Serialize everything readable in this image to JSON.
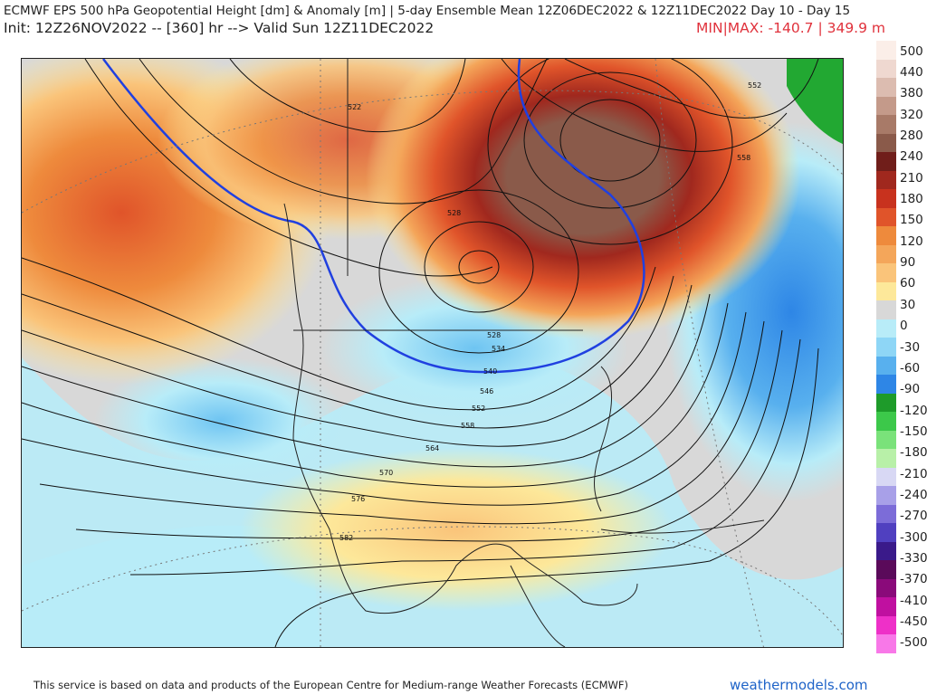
{
  "header": {
    "title": "ECMWF EPS 500 hPa Geopotential Height [dm] & Anomaly [m] | 5-day Ensemble Mean 12Z06DEC2022 & 12Z11DEC2022  Day 10 - Day 15",
    "init": "Init: 12Z26NOV2022 -- [360] hr --> Valid Sun 12Z11DEC2022",
    "minmax": "MIN|MAX: -140.7 | 349.9 m"
  },
  "map": {
    "contour_labels": [
      "522",
      "528",
      "528",
      "534",
      "540",
      "546",
      "552",
      "558",
      "564",
      "570",
      "576",
      "582",
      "552",
      "558"
    ],
    "anomaly_colors": {
      "strong_positive": "#8a5a4a",
      "positive_high": "#c8321e",
      "positive_mid": "#ee8a3c",
      "positive_low": "#fac47a",
      "positive_faint": "#fdf0a0",
      "neutral": "#d8d8d8",
      "negative_low": "#b8ecf8",
      "negative_mid": "#6ec4f2",
      "negative_high": "#2e86e6",
      "green": "#22a832",
      "trough_line": "#2040e0"
    }
  },
  "colorbar": {
    "labels": [
      "500",
      "440",
      "380",
      "320",
      "280",
      "240",
      "210",
      "180",
      "150",
      "120",
      "90",
      "60",
      "30",
      "0",
      "-30",
      "-60",
      "-90",
      "-120",
      "-150",
      "-180",
      "-210",
      "-240",
      "-270",
      "-300",
      "-330",
      "-370",
      "-410",
      "-450",
      "-500"
    ],
    "colors": [
      "#fbeee8",
      "#efd8d0",
      "#dcbcb0",
      "#c49a8a",
      "#a87a68",
      "#8a5a4a",
      "#701e1a",
      "#a0281e",
      "#c8321e",
      "#e0542a",
      "#ee8a3c",
      "#f4a65a",
      "#fac47a",
      "#fde89a",
      "#d8d8d8",
      "#b8ecf8",
      "#8ed6f6",
      "#58b0ee",
      "#2e86e6",
      "#1e9b2a",
      "#3cc84a",
      "#7ae27a",
      "#b8f0a8",
      "#d8d8f4",
      "#a8a0e8",
      "#7c6cd8",
      "#5040c0",
      "#3a1a8a",
      "#5a0a5a",
      "#8a0a7a",
      "#c010a0",
      "#ee30c8",
      "#f878e8"
    ]
  },
  "footer": {
    "credit": "This service is based on data and products of the European Centre for Medium-range Weather Forecasts (ECMWF)",
    "brand": "weathermodels.com"
  }
}
